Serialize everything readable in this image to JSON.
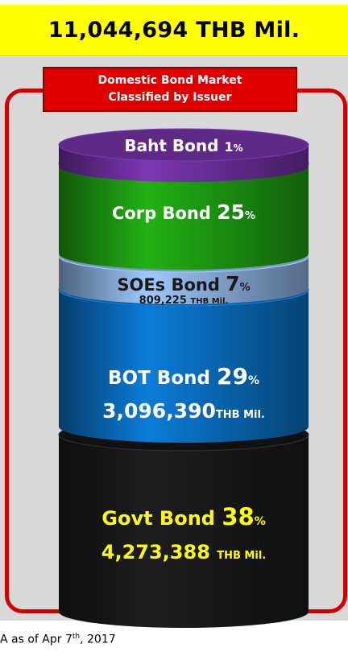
{
  "total": {
    "label": "11,044,694 THB Mil."
  },
  "header": {
    "line1": "Domestic Bond Market",
    "line2": "Classified by Issuer"
  },
  "source": {
    "prefix": "A as of Apr 7",
    "sup": "th",
    "suffix": ", 2017"
  },
  "colors": {
    "baht": "#7030a0",
    "corp": "#1e9e12",
    "soes": "#8db3e2",
    "bot": "#0a6fc2",
    "govt": "#000000",
    "highlight": "#ffff00",
    "frame": "#d00000"
  },
  "chart_data": {
    "type": "stacked-cylinder",
    "total": 11044694,
    "unit": "THB Mil.",
    "categories": [
      "Baht Bond",
      "Corp Bond",
      "SOEs Bond",
      "BOT Bond",
      "Govt Bond"
    ],
    "percent": [
      1,
      25,
      7,
      29,
      38
    ],
    "amounts": [
      null,
      null,
      809225,
      3096390,
      4273388
    ],
    "segments": [
      {
        "name": "Baht Bond",
        "percent_label": "1",
        "pct_sign": "%",
        "amount_label": "",
        "unit": "",
        "fill": "#7030a0",
        "text_color": "#ffffff"
      },
      {
        "name": "Corp Bond",
        "percent_label": "25",
        "pct_sign": "%",
        "amount_label": "",
        "unit": "",
        "fill": "#1e9e12",
        "text_color": "#ffffff"
      },
      {
        "name": "SOEs Bond",
        "percent_label": "7",
        "pct_sign": "%",
        "amount_label": "809,225",
        "unit": "THB Mil.",
        "fill": "#8db3e2",
        "text_color": "#1a1a1a"
      },
      {
        "name": "BOT Bond",
        "percent_label": "29",
        "pct_sign": "%",
        "amount_label": "3,096,390",
        "unit": "THB Mil.",
        "fill": "#0a6fc2",
        "text_color": "#ffffff"
      },
      {
        "name": "Govt Bond",
        "percent_label": "38",
        "pct_sign": "%",
        "amount_label": "4,273,388",
        "unit": "THB Mil.",
        "fill": "#000000",
        "text_color": "#ffff00"
      }
    ]
  }
}
